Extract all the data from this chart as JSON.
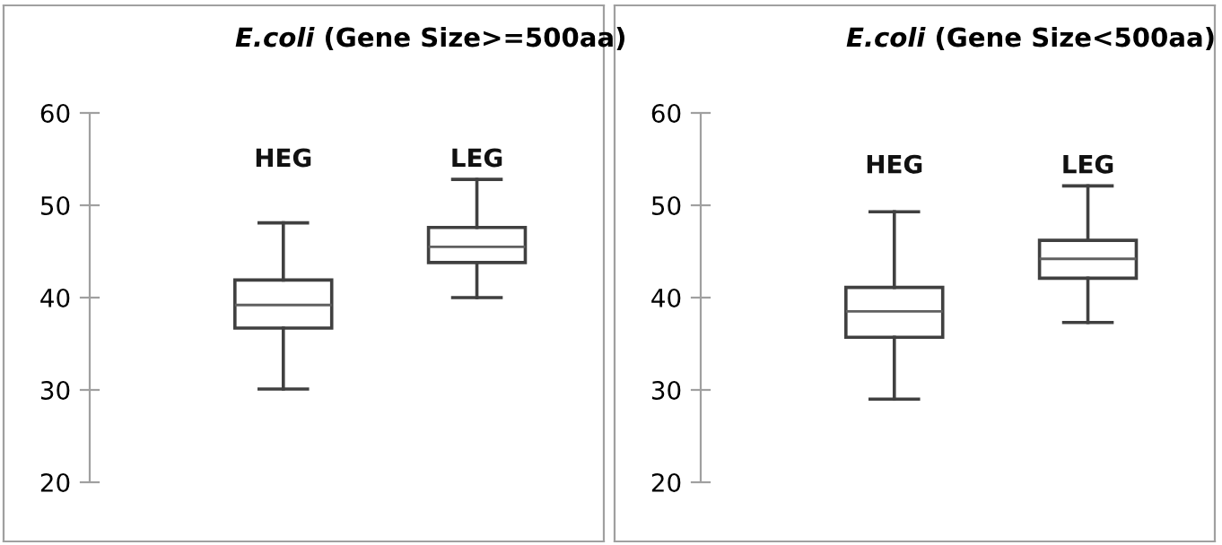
{
  "chart_data": [
    {
      "type": "box",
      "title": "E.coli (Gene Size>=500aa)",
      "categories": [
        "HEG",
        "LEG"
      ],
      "boxes": [
        {
          "low": 30.1,
          "q1": 36.7,
          "median": 39.2,
          "q3": 41.9,
          "high": 48.1
        },
        {
          "low": 40.0,
          "q1": 43.8,
          "median": 45.5,
          "q3": 47.6,
          "high": 52.8
        }
      ],
      "ylim": [
        20,
        60
      ],
      "yticks": [
        20,
        30,
        40,
        50,
        60
      ],
      "grid": false,
      "legend": false
    },
    {
      "type": "box",
      "title": "E.coli (Gene Size<500aa)",
      "categories": [
        "HEG",
        "LEG"
      ],
      "boxes": [
        {
          "low": 29.0,
          "q1": 35.7,
          "median": 38.5,
          "q3": 41.1,
          "high": 49.3
        },
        {
          "low": 37.3,
          "q1": 42.1,
          "median": 44.2,
          "q3": 46.2,
          "high": 52.1
        }
      ],
      "ylim": [
        20,
        60
      ],
      "yticks": [
        20,
        30,
        40,
        50,
        60
      ],
      "grid": false,
      "legend": false
    }
  ]
}
